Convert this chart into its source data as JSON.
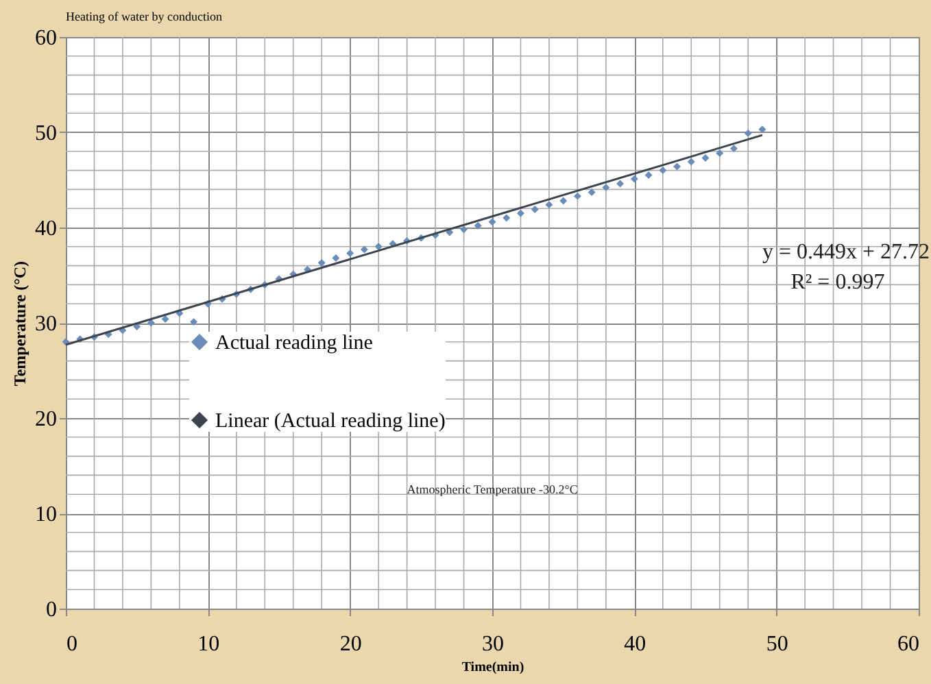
{
  "chart_data": {
    "type": "scatter",
    "title": "Heating of water by conduction",
    "xlabel": "Time(min)",
    "ylabel": "Temperature (°C)",
    "annotations": [
      "y = 0.449x + 27.72",
      "R² = 0.997",
      "Atmospheric  Temperature -30.2°C"
    ],
    "xlim": [
      0,
      60
    ],
    "ylim": [
      0,
      60
    ],
    "xticks": [
      0,
      {
        "value": 2,
        "label": null
      },
      {
        "value": 4,
        "label": null
      },
      {
        "value": 6,
        "label": null
      },
      {
        "value": 8,
        "label": null
      },
      10,
      {
        "value": 12,
        "label": null
      },
      {
        "value": 14,
        "label": null
      },
      {
        "value": 16,
        "label": null
      },
      {
        "value": 18,
        "label": null
      },
      20,
      {
        "value": 22,
        "label": null
      },
      {
        "value": 24,
        "label": null
      },
      {
        "value": 26,
        "label": null
      },
      {
        "value": 28,
        "label": null
      },
      30,
      {
        "value": 32,
        "label": null
      },
      {
        "value": 34,
        "label": null
      },
      {
        "value": 36,
        "label": null
      },
      {
        "value": 38,
        "label": null
      },
      40,
      {
        "value": 42,
        "label": null
      },
      {
        "value": 44,
        "label": null
      },
      {
        "value": 46,
        "label": null
      },
      {
        "value": 48,
        "label": null
      },
      50,
      {
        "value": 52,
        "label": null
      },
      {
        "value": 54,
        "label": null
      },
      {
        "value": 56,
        "label": null
      },
      {
        "value": 58,
        "label": null
      },
      60
    ],
    "yticks": [
      0,
      {
        "value": 2,
        "label": null
      },
      {
        "value": 4,
        "label": null
      },
      {
        "value": 6,
        "label": null
      },
      {
        "value": 8,
        "label": null
      },
      10,
      {
        "value": 12,
        "label": null
      },
      {
        "value": 14,
        "label": null
      },
      {
        "value": 16,
        "label": null
      },
      {
        "value": 18,
        "label": null
      },
      20,
      {
        "value": 22,
        "label": null
      },
      {
        "value": 24,
        "label": null
      },
      {
        "value": 26,
        "label": null
      },
      {
        "value": 28,
        "label": null
      },
      30,
      {
        "value": 32,
        "label": null
      },
      {
        "value": 34,
        "label": null
      },
      {
        "value": 36,
        "label": null
      },
      {
        "value": 38,
        "label": null
      },
      40,
      {
        "value": 42,
        "label": null
      },
      {
        "value": 44,
        "label": null
      },
      {
        "value": 46,
        "label": null
      },
      {
        "value": 48,
        "label": null
      },
      50,
      {
        "value": 52,
        "label": null
      },
      {
        "value": 54,
        "label": null
      },
      {
        "value": 56,
        "label": null
      },
      {
        "value": 58,
        "label": null
      },
      60
    ],
    "grid": true,
    "legend": "left",
    "series": [
      {
        "name": "Actual reading line",
        "marker": "diamond",
        "color": "#6a8cb8",
        "x": [
          0,
          1,
          2,
          3,
          4,
          5,
          6,
          7,
          8,
          9,
          10,
          11,
          12,
          13,
          14,
          15,
          16,
          17,
          18,
          19,
          20,
          21,
          22,
          23,
          24,
          25,
          26,
          27,
          28,
          29,
          30,
          31,
          32,
          33,
          34,
          35,
          36,
          37,
          38,
          39,
          40,
          41,
          42,
          43,
          44,
          45,
          46,
          47,
          48,
          49
        ],
        "values": [
          28.0,
          28.3,
          28.5,
          28.8,
          29.2,
          29.6,
          30.0,
          30.4,
          31.0,
          30.1,
          32.0,
          32.5,
          33.0,
          33.5,
          34.0,
          34.6,
          35.1,
          35.6,
          36.3,
          36.8,
          37.3,
          37.7,
          38.0,
          38.3,
          38.6,
          38.9,
          39.2,
          39.5,
          39.8,
          40.2,
          40.6,
          41.0,
          41.5,
          41.9,
          42.4,
          42.8,
          43.3,
          43.7,
          44.2,
          44.6,
          45.1,
          45.5,
          46.0,
          46.4,
          46.9,
          47.3,
          47.8,
          48.3,
          49.9,
          50.3
        ]
      },
      {
        "name": "Linear (Actual reading line)",
        "type": "line",
        "line_style": "solid",
        "color": "#3c4450",
        "x": [
          0,
          49
        ],
        "values": [
          27.7,
          49.7
        ]
      }
    ]
  }
}
